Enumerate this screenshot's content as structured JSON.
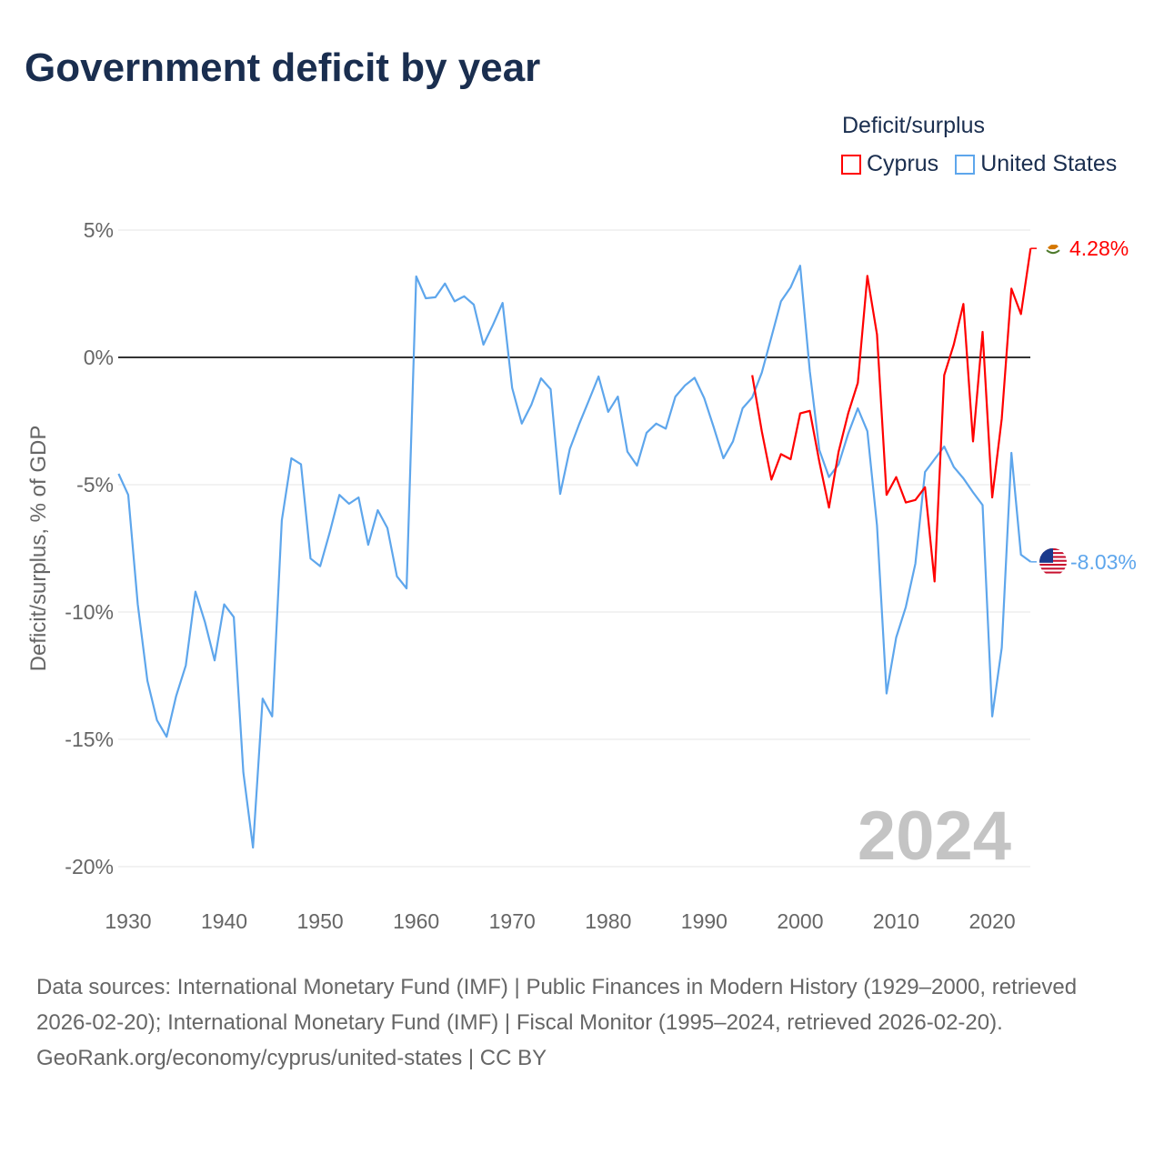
{
  "title": "Government deficit by year",
  "legend": {
    "title": "Deficit/surplus",
    "items": [
      {
        "label": "Cyprus",
        "color": "#ff0000"
      },
      {
        "label": "United States",
        "color": "#5ea6ec"
      }
    ]
  },
  "footer": {
    "sources": "Data sources: International Monetary Fund (IMF) | Public Finances in Modern History (1929–2000, retrieved 2026-02-20); International Monetary Fund (IMF) | Fiscal Monitor (1995–2024, retrieved 2026-02-20).",
    "attribution": "GeoRank.org/economy/cyprus/united-states | CC BY"
  },
  "chart_data": {
    "type": "line",
    "title": "Government deficit by year",
    "xlabel": "",
    "ylabel": "Deficit/surplus, % of GDP",
    "xlim": [
      1929,
      2024
    ],
    "ylim": [
      -20,
      5
    ],
    "x_ticks": [
      1930,
      1940,
      1950,
      1960,
      1970,
      1980,
      1990,
      2000,
      2010,
      2020
    ],
    "x_tick_labels": [
      "1930",
      "1940",
      "1950",
      "1960",
      "1970",
      "1980",
      "1990",
      "2000",
      "2010",
      "2020"
    ],
    "y_ticks": [
      5,
      0,
      -5,
      -10,
      -15,
      -20
    ],
    "y_tick_labels": [
      "5%",
      "0%",
      "-5%",
      "-10%",
      "-15%",
      "-20%"
    ],
    "year_watermark": "2024",
    "grid": true,
    "legend_position": "top-right",
    "series": [
      {
        "name": "Cyprus",
        "color": "#ff0000",
        "start_year": 1995,
        "end_label": "4.28%",
        "values": [
          -0.7,
          -2.9,
          -4.8,
          -3.8,
          -4.0,
          -2.2,
          -2.1,
          -4.1,
          -5.9,
          -3.7,
          -2.2,
          -1.0,
          3.2,
          0.9,
          -5.4,
          -4.7,
          -5.7,
          -5.6,
          -5.1,
          -8.8,
          -0.7,
          0.5,
          2.1,
          -3.3,
          1.0,
          -5.5,
          -2.4,
          2.7,
          1.7,
          4.28
        ]
      },
      {
        "name": "United States",
        "color": "#5ea6ec",
        "start_year": 1929,
        "end_label": "-8.03%",
        "values": [
          -4.57,
          -5.4,
          -9.7,
          -12.7,
          -14.25,
          -14.9,
          -13.3,
          -12.1,
          -9.2,
          -10.4,
          -11.9,
          -9.7,
          -10.2,
          -16.3,
          -19.25,
          -13.4,
          -14.1,
          -6.4,
          -3.96,
          -4.2,
          -7.9,
          -8.2,
          -6.86,
          -5.4,
          -5.75,
          -5.5,
          -7.36,
          -6.0,
          -6.7,
          -8.6,
          -9.07,
          3.18,
          2.32,
          2.36,
          2.9,
          2.2,
          2.4,
          2.07,
          0.5,
          1.28,
          2.14,
          -1.2,
          -2.6,
          -1.86,
          -0.82,
          -1.25,
          -5.36,
          -3.6,
          -2.6,
          -1.68,
          -0.75,
          -2.14,
          -1.54,
          -3.7,
          -4.25,
          -2.96,
          -2.6,
          -2.8,
          -1.54,
          -1.1,
          -0.8,
          -1.6,
          -2.75,
          -3.96,
          -3.3,
          -2.0,
          -1.57,
          -0.6,
          0.8,
          2.2,
          2.75,
          3.6,
          -0.54,
          -3.64,
          -4.7,
          -4.2,
          -3.0,
          -2.0,
          -2.9,
          -6.6,
          -13.2,
          -11.0,
          -9.8,
          -8.1,
          -4.5,
          -4.0,
          -3.5,
          -4.3,
          -4.75,
          -5.3,
          -5.8,
          -14.1,
          -11.4,
          -3.75,
          -7.75,
          -8.03
        ]
      }
    ]
  }
}
